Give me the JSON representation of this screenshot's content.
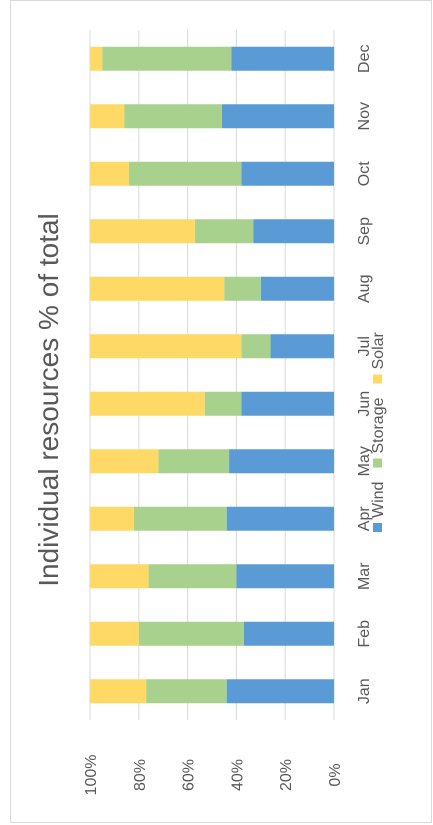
{
  "chart_data": {
    "type": "bar",
    "orientation": "stacked-100-percent",
    "title": "Individual resources % of total",
    "categories": [
      "Jan",
      "Feb",
      "Mar",
      "Apr",
      "May",
      "Jun",
      "Jul",
      "Aug",
      "Sep",
      "Oct",
      "Nov",
      "Dec"
    ],
    "series": [
      {
        "name": "Wind",
        "color": "#5b9bd5",
        "values": [
          44,
          37,
          40,
          44,
          43,
          38,
          26,
          30,
          33,
          38,
          46,
          42
        ]
      },
      {
        "name": "Storage",
        "color": "#a9d18e",
        "values": [
          33,
          43,
          36,
          38,
          29,
          15,
          12,
          15,
          24,
          46,
          40,
          53
        ]
      },
      {
        "name": "Solar",
        "color": "#ffd966",
        "values": [
          23,
          20,
          24,
          18,
          28,
          47,
          62,
          55,
          43,
          16,
          14,
          5
        ]
      }
    ],
    "value_axis": {
      "ticks": [
        "0%",
        "20%",
        "40%",
        "60%",
        "80%",
        "100%"
      ],
      "range": [
        0,
        100
      ]
    },
    "grid": true,
    "legend": "right"
  }
}
